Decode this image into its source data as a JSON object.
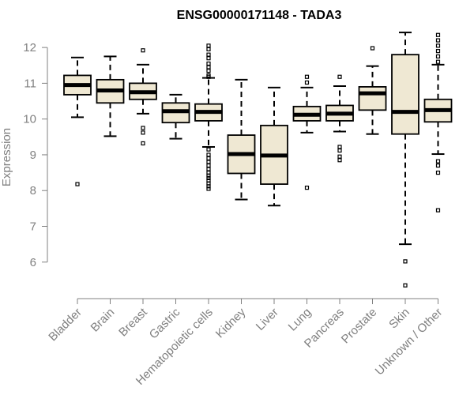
{
  "chart_data": {
    "type": "boxplot",
    "title": "ENSG00000171148 - TADA3",
    "xlabel": "",
    "ylabel": "Expression",
    "ylim": [
      5.2,
      12.4
    ],
    "yticks": [
      6,
      7,
      8,
      9,
      10,
      11,
      12
    ],
    "grid": false,
    "colors": {
      "box_fill": "#efe8d3",
      "stroke": "#000000",
      "axis": "#808080"
    },
    "series": [
      {
        "name": "Bladder",
        "q1": 10.68,
        "median": 10.95,
        "q3": 11.22,
        "whisker_low": 10.05,
        "whisker_high": 11.72,
        "outliers": [
          8.18
        ]
      },
      {
        "name": "Brain",
        "q1": 10.45,
        "median": 10.8,
        "q3": 11.1,
        "whisker_low": 9.52,
        "whisker_high": 11.75,
        "outliers": []
      },
      {
        "name": "Breast",
        "q1": 10.55,
        "median": 10.75,
        "q3": 11.0,
        "whisker_low": 10.15,
        "whisker_high": 11.52,
        "outliers": [
          11.92,
          9.75,
          9.62,
          9.32
        ]
      },
      {
        "name": "Gastric",
        "q1": 9.9,
        "median": 10.22,
        "q3": 10.45,
        "whisker_low": 9.45,
        "whisker_high": 10.68,
        "outliers": []
      },
      {
        "name": "Hematopoietic cells",
        "q1": 9.95,
        "median": 10.2,
        "q3": 10.42,
        "whisker_low": 9.22,
        "whisker_high": 11.15,
        "outliers": [
          12.05,
          11.95,
          11.8,
          11.7,
          11.55,
          11.45,
          11.35,
          11.22,
          11.18,
          9.15,
          9.0,
          8.9,
          8.8,
          8.7,
          8.6,
          8.5,
          8.42,
          8.35,
          8.28,
          8.2,
          8.12,
          8.05
        ]
      },
      {
        "name": "Kidney",
        "q1": 8.48,
        "median": 9.02,
        "q3": 9.55,
        "whisker_low": 7.75,
        "whisker_high": 11.1,
        "outliers": []
      },
      {
        "name": "Liver",
        "q1": 8.18,
        "median": 8.98,
        "q3": 9.82,
        "whisker_low": 7.58,
        "whisker_high": 10.88,
        "outliers": []
      },
      {
        "name": "Lung",
        "q1": 9.95,
        "median": 10.12,
        "q3": 10.35,
        "whisker_low": 9.62,
        "whisker_high": 10.88,
        "outliers": [
          11.18,
          11.02,
          8.08
        ]
      },
      {
        "name": "Pancreas",
        "q1": 9.95,
        "median": 10.15,
        "q3": 10.38,
        "whisker_low": 9.65,
        "whisker_high": 10.92,
        "outliers": [
          11.18,
          9.22,
          9.12,
          8.95,
          8.85
        ]
      },
      {
        "name": "Prostate",
        "q1": 10.25,
        "median": 10.72,
        "q3": 10.9,
        "whisker_low": 9.58,
        "whisker_high": 11.48,
        "outliers": [
          11.98
        ]
      },
      {
        "name": "Skin",
        "q1": 9.58,
        "median": 10.2,
        "q3": 11.8,
        "whisker_low": 6.5,
        "whisker_high": 12.42,
        "outliers": [
          6.02,
          5.35
        ]
      },
      {
        "name": "Unknown / Other",
        "q1": 9.92,
        "median": 10.25,
        "q3": 10.55,
        "whisker_low": 9.02,
        "whisker_high": 11.52,
        "outliers": [
          12.35,
          12.2,
          12.05,
          11.9,
          11.75,
          11.6,
          8.82,
          8.7,
          8.5,
          7.45
        ]
      }
    ]
  }
}
